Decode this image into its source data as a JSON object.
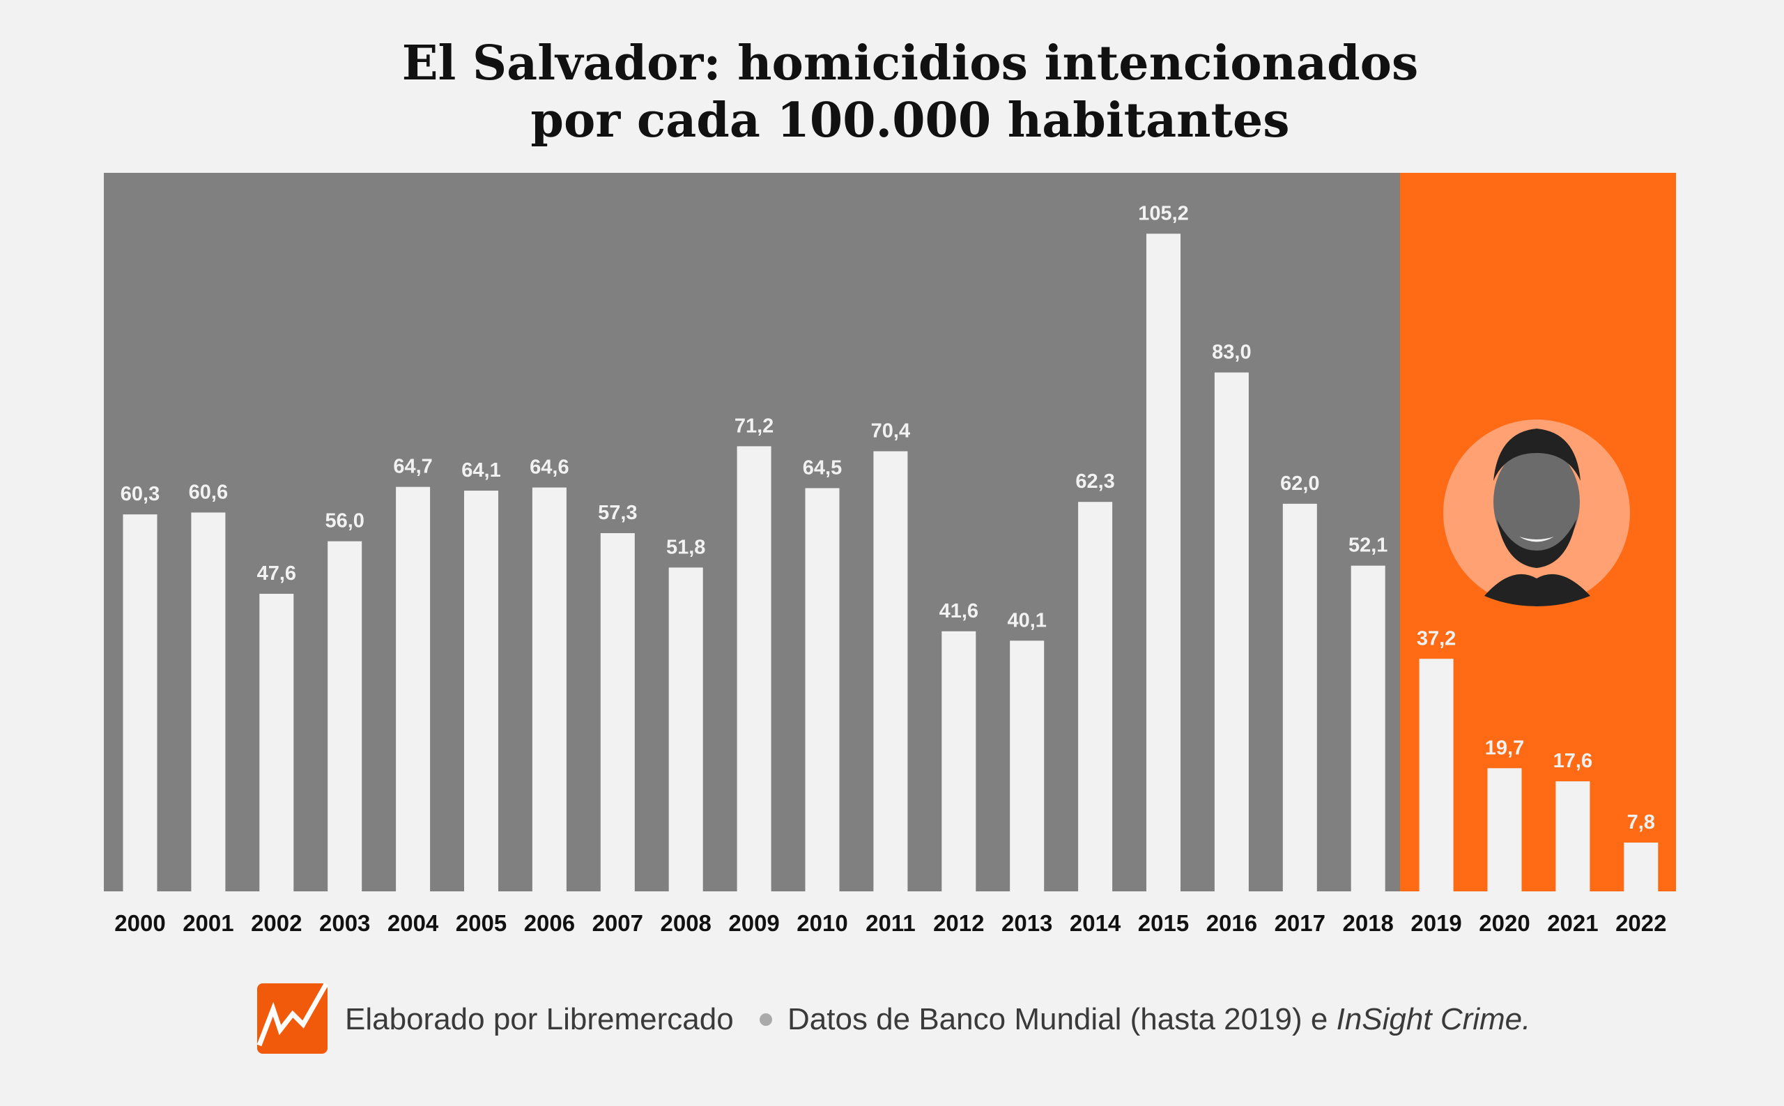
{
  "chart_data": {
    "type": "bar",
    "title": [
      "El Salvador: homicidios intencionados",
      "por cada 100.000 habitantes"
    ],
    "xlabel": "",
    "ylabel": "",
    "ylim": [
      0,
      110
    ],
    "grid": false,
    "categories": [
      "2000",
      "2001",
      "2002",
      "2003",
      "2004",
      "2005",
      "2006",
      "2007",
      "2008",
      "2009",
      "2010",
      "2011",
      "2012",
      "2013",
      "2014",
      "2015",
      "2016",
      "2017",
      "2018",
      "2019",
      "2020",
      "2021",
      "2022"
    ],
    "values": [
      60.3,
      60.6,
      47.6,
      56.0,
      64.7,
      64.1,
      64.6,
      57.3,
      51.8,
      71.2,
      64.5,
      70.4,
      41.6,
      40.1,
      62.3,
      105.2,
      83.0,
      62.0,
      52.1,
      37.2,
      19.7,
      17.6,
      7.8
    ],
    "labels": [
      "60,3",
      "60,6",
      "47,6",
      "56,0",
      "64,7",
      "64,1",
      "64,6",
      "57,3",
      "51,8",
      "71,2",
      "64,5",
      "70,4",
      "41,6",
      "40,1",
      "62,3",
      "105,2",
      "83,0",
      "62,0",
      "52,1",
      "37,2",
      "19,7",
      "17,6",
      "7,8"
    ],
    "highlight_from": "2019",
    "colors": {
      "background": "#f2f2f2",
      "panel": "#808080",
      "highlight_panel": "#ff6a14",
      "bar": "#f2f2f2",
      "portrait_bg": "#ffa172",
      "logo": "#f05a0a"
    }
  },
  "footer": {
    "credit": "Elaborado por Libremercado",
    "source_prefix": "Datos de Banco Mundial (hasta 2019) e ",
    "source_italic": "InSight Crime."
  },
  "icons": {
    "logo": "libremercado-logo-icon",
    "portrait": "portrait-photo"
  }
}
